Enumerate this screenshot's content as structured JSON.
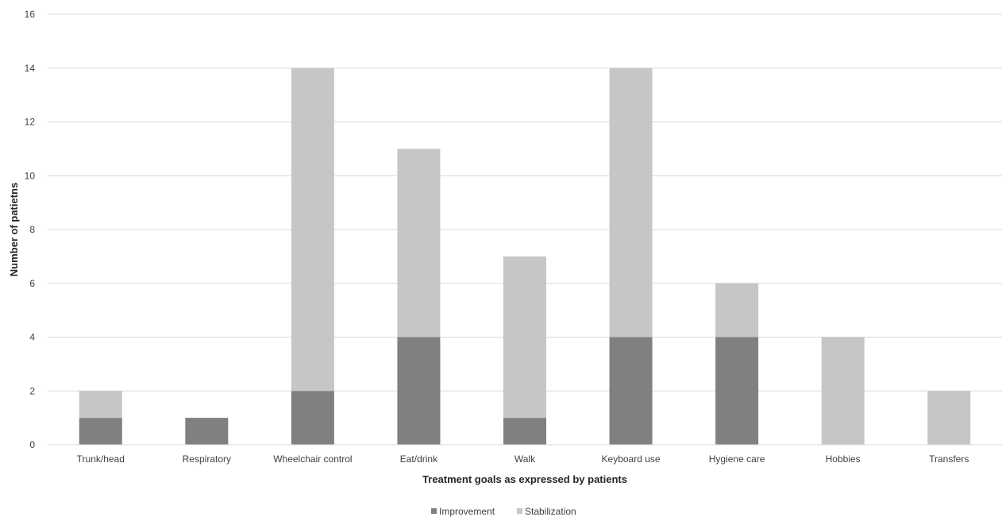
{
  "chart_data": {
    "type": "bar",
    "stacked": true,
    "categories": [
      "Trunk/head",
      "Respiratory",
      "Wheelchair control",
      "Eat/drink",
      "Walk",
      "Keyboard use",
      "Hygiene care",
      "Hobbies",
      "Transfers"
    ],
    "series": [
      {
        "name": "Improvement",
        "values": [
          1,
          1,
          2,
          4,
          1,
          4,
          4,
          0,
          0
        ],
        "color": "#808080"
      },
      {
        "name": "Stabilization",
        "values": [
          1,
          0,
          12,
          7,
          6,
          10,
          2,
          4,
          2
        ],
        "color": "#c6c6c6"
      }
    ],
    "xlabel": "Treatment goals as expressed by patients",
    "ylabel": "Number of patietns",
    "ylim": [
      0,
      16
    ],
    "yticks": [
      0,
      2,
      4,
      6,
      8,
      10,
      12,
      14,
      16
    ],
    "grid": true,
    "gridColor": "#d9d9d9",
    "legend": "bottom-center"
  }
}
